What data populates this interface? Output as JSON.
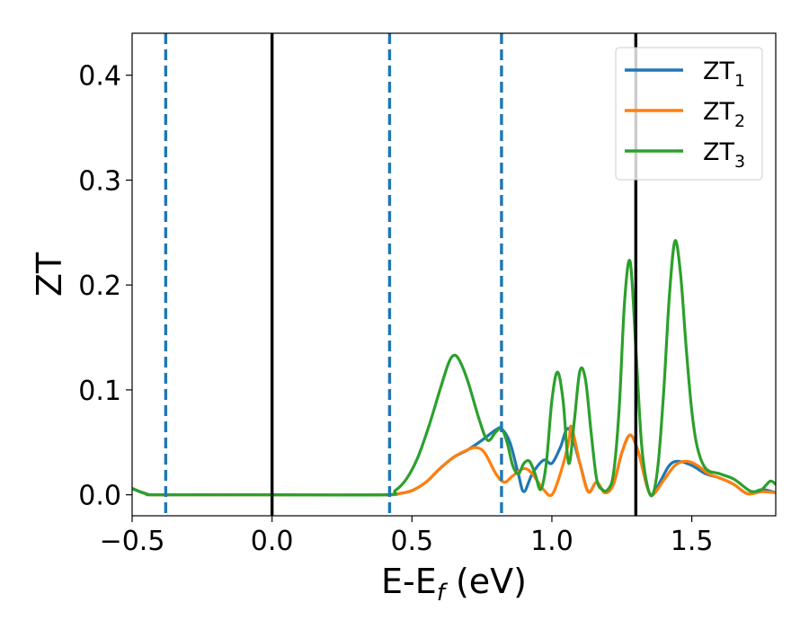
{
  "chart_data": {
    "type": "line",
    "xlabel": "E-E",
    "xlabel_sub": "f",
    "xlabel_unit": " (eV)",
    "ylabel": "ZT",
    "xlim": [
      -0.5,
      1.8
    ],
    "ylim": [
      -0.02,
      0.44
    ],
    "x_ticks": [
      -0.5,
      0.0,
      0.5,
      1.0,
      1.5
    ],
    "x_tick_labels": [
      "−0.5",
      "0.0",
      "0.5",
      "1.0",
      "1.5"
    ],
    "y_ticks": [
      0.0,
      0.1,
      0.2,
      0.3,
      0.4
    ],
    "y_tick_labels": [
      "0.0",
      "0.1",
      "0.2",
      "0.3",
      "0.4"
    ],
    "grid": false,
    "legend_position": "top-right",
    "series": [
      {
        "name": "ZT",
        "sub": "1",
        "color": "#1f77b4",
        "x": [
          -0.5,
          -0.45,
          -0.4,
          0.0,
          0.4,
          0.45,
          0.5,
          0.55,
          0.6,
          0.65,
          0.7,
          0.75,
          0.8,
          0.82,
          0.85,
          0.88,
          0.9,
          0.93,
          0.97,
          1.0,
          1.03,
          1.06,
          1.1,
          1.13,
          1.16,
          1.19,
          1.22,
          1.25,
          1.28,
          1.31,
          1.34,
          1.36,
          1.39,
          1.42,
          1.45,
          1.5,
          1.55,
          1.6,
          1.65,
          1.7,
          1.75,
          1.8
        ],
        "y": [
          0.006,
          0.001,
          0.0,
          0.0,
          0.0,
          0.001,
          0.004,
          0.012,
          0.025,
          0.036,
          0.043,
          0.052,
          0.062,
          0.063,
          0.05,
          0.02,
          0.003,
          0.02,
          0.033,
          0.03,
          0.045,
          0.063,
          0.03,
          0.003,
          0.012,
          0.002,
          0.01,
          0.04,
          0.057,
          0.04,
          0.008,
          0.0,
          0.014,
          0.028,
          0.032,
          0.028,
          0.02,
          0.016,
          0.01,
          0.001,
          0.005,
          0.002
        ]
      },
      {
        "name": "ZT",
        "sub": "2",
        "color": "#ff7f0e",
        "x": [
          -0.5,
          -0.45,
          -0.4,
          0.0,
          0.4,
          0.45,
          0.5,
          0.55,
          0.6,
          0.65,
          0.7,
          0.73,
          0.76,
          0.8,
          0.83,
          0.86,
          0.9,
          0.93,
          0.97,
          1.0,
          1.03,
          1.06,
          1.07,
          1.1,
          1.13,
          1.16,
          1.19,
          1.22,
          1.25,
          1.28,
          1.31,
          1.34,
          1.36,
          1.4,
          1.44,
          1.48,
          1.52,
          1.56,
          1.6,
          1.65,
          1.7,
          1.75,
          1.8
        ],
        "y": [
          0.006,
          0.001,
          0.0,
          0.0,
          0.0,
          0.001,
          0.004,
          0.012,
          0.025,
          0.036,
          0.043,
          0.045,
          0.04,
          0.02,
          0.012,
          0.018,
          0.025,
          0.02,
          0.005,
          0.0,
          0.02,
          0.05,
          0.065,
          0.03,
          0.003,
          0.012,
          0.002,
          0.01,
          0.04,
          0.057,
          0.04,
          0.008,
          0.0,
          0.014,
          0.028,
          0.032,
          0.028,
          0.02,
          0.016,
          0.01,
          0.001,
          0.003,
          0.002
        ]
      },
      {
        "name": "ZT",
        "sub": "3",
        "color": "#2ca02c",
        "x": [
          -0.5,
          -0.45,
          -0.4,
          0.0,
          0.4,
          0.44,
          0.48,
          0.52,
          0.56,
          0.6,
          0.63,
          0.65,
          0.67,
          0.7,
          0.74,
          0.77,
          0.8,
          0.82,
          0.84,
          0.86,
          0.88,
          0.9,
          0.92,
          0.94,
          0.96,
          0.98,
          1.0,
          1.02,
          1.04,
          1.06,
          1.08,
          1.1,
          1.12,
          1.14,
          1.16,
          1.18,
          1.2,
          1.22,
          1.24,
          1.26,
          1.28,
          1.3,
          1.32,
          1.34,
          1.36,
          1.38,
          1.4,
          1.42,
          1.44,
          1.46,
          1.48,
          1.5,
          1.52,
          1.55,
          1.6,
          1.65,
          1.7,
          1.72,
          1.75,
          1.78,
          1.8
        ],
        "y": [
          0.006,
          0.001,
          0.0,
          0.0,
          0.0,
          0.004,
          0.015,
          0.035,
          0.065,
          0.1,
          0.125,
          0.133,
          0.128,
          0.108,
          0.072,
          0.052,
          0.06,
          0.063,
          0.05,
          0.028,
          0.02,
          0.03,
          0.032,
          0.02,
          0.005,
          0.03,
          0.09,
          0.117,
          0.09,
          0.03,
          0.07,
          0.118,
          0.11,
          0.06,
          0.015,
          0.005,
          0.005,
          0.02,
          0.08,
          0.185,
          0.222,
          0.14,
          0.05,
          0.01,
          0.0,
          0.03,
          0.1,
          0.19,
          0.242,
          0.21,
          0.14,
          0.08,
          0.045,
          0.025,
          0.02,
          0.015,
          0.005,
          0.003,
          0.005,
          0.013,
          0.01
        ]
      }
    ],
    "vlines": [
      {
        "x": -0.38,
        "style": "dashed",
        "color": "#1f77b4"
      },
      {
        "x": 0.0,
        "style": "solid",
        "color": "#000000"
      },
      {
        "x": 0.42,
        "style": "dashed",
        "color": "#1f77b4"
      },
      {
        "x": 0.82,
        "style": "dashed",
        "color": "#1f77b4"
      },
      {
        "x": 1.3,
        "style": "solid",
        "color": "#000000"
      }
    ]
  }
}
